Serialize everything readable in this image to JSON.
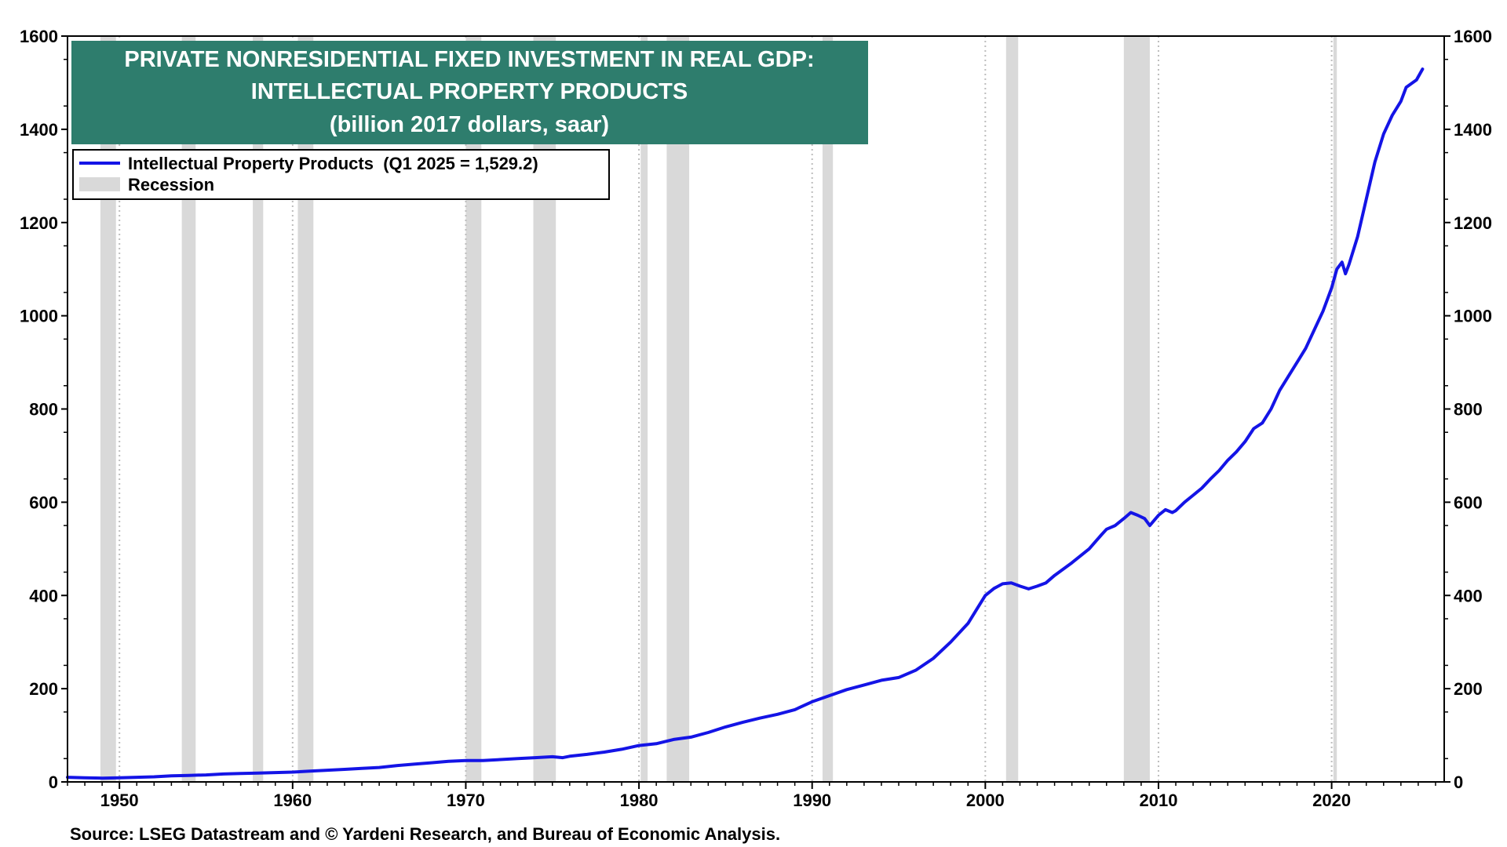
{
  "chart_data": {
    "type": "line",
    "title": [
      "PRIVATE NONRESIDENTIAL FIXED INVESTMENT IN REAL GDP:",
      "INTELLECTUAL PROPERTY PRODUCTS",
      "(billion 2017 dollars, saar)"
    ],
    "source": "Source: LSEG Datastream and © Yardeni Research, and Bureau of Economic Analysis.",
    "xlim": [
      1947,
      2026.5
    ],
    "ylim": [
      0,
      1600
    ],
    "x_ticks": [
      1950,
      1960,
      1970,
      1980,
      1990,
      2000,
      2010,
      2020
    ],
    "y_ticks": [
      0,
      200,
      400,
      600,
      800,
      1000,
      1200,
      1400,
      1600
    ],
    "y_tick_labels": [
      "0",
      "200",
      "400",
      "600",
      "800",
      "1000",
      "1200",
      "1400",
      "1600"
    ],
    "axes": "left and right",
    "grid": "dotted vertical",
    "legend_position": "top-left",
    "colors": {
      "series": "#1414e6",
      "recession": "#d9d9d9",
      "title_bg": "#2e7d6d"
    },
    "legend": [
      {
        "label": "Intellectual Property Products  (Q1 2025 = 1,529.2)",
        "kind": "line"
      },
      {
        "label": "Recession",
        "kind": "band"
      }
    ],
    "recessions": [
      [
        1948.9,
        1949.8
      ],
      [
        1953.6,
        1954.4
      ],
      [
        1957.7,
        1958.3
      ],
      [
        1960.3,
        1961.2
      ],
      [
        1970.0,
        1970.9
      ],
      [
        1973.9,
        1975.2
      ],
      [
        1980.1,
        1980.5
      ],
      [
        1981.6,
        1982.9
      ],
      [
        1990.6,
        1991.2
      ],
      [
        2001.2,
        2001.9
      ],
      [
        2008.0,
        2009.5
      ],
      [
        2020.1,
        2020.3
      ]
    ],
    "series": [
      {
        "name": "Intellectual Property Products",
        "points": [
          [
            1947.0,
            10
          ],
          [
            1948.0,
            9
          ],
          [
            1949.0,
            8
          ],
          [
            1950.0,
            9
          ],
          [
            1951.0,
            10
          ],
          [
            1952.0,
            11
          ],
          [
            1953.0,
            13
          ],
          [
            1954.0,
            14
          ],
          [
            1955.0,
            15
          ],
          [
            1956.0,
            17
          ],
          [
            1957.0,
            18
          ],
          [
            1958.0,
            19
          ],
          [
            1959.0,
            20
          ],
          [
            1960.0,
            21
          ],
          [
            1961.0,
            23
          ],
          [
            1962.0,
            25
          ],
          [
            1963.0,
            27
          ],
          [
            1964.0,
            29
          ],
          [
            1965.0,
            31
          ],
          [
            1966.0,
            35
          ],
          [
            1967.0,
            38
          ],
          [
            1968.0,
            41
          ],
          [
            1969.0,
            44
          ],
          [
            1970.0,
            46
          ],
          [
            1971.0,
            46
          ],
          [
            1972.0,
            48
          ],
          [
            1973.0,
            50
          ],
          [
            1974.0,
            52
          ],
          [
            1975.0,
            54
          ],
          [
            1975.6,
            52
          ],
          [
            1976.0,
            55
          ],
          [
            1977.0,
            59
          ],
          [
            1978.0,
            64
          ],
          [
            1979.0,
            70
          ],
          [
            1980.0,
            78
          ],
          [
            1981.0,
            82
          ],
          [
            1982.0,
            91
          ],
          [
            1983.0,
            96
          ],
          [
            1984.0,
            106
          ],
          [
            1985.0,
            118
          ],
          [
            1986.0,
            128
          ],
          [
            1987.0,
            137
          ],
          [
            1988.0,
            145
          ],
          [
            1989.0,
            155
          ],
          [
            1990.0,
            172
          ],
          [
            1991.0,
            185
          ],
          [
            1992.0,
            198
          ],
          [
            1993.0,
            208
          ],
          [
            1994.0,
            218
          ],
          [
            1995.0,
            224
          ],
          [
            1996.0,
            240
          ],
          [
            1997.0,
            265
          ],
          [
            1998.0,
            300
          ],
          [
            1999.0,
            340
          ],
          [
            1999.5,
            370
          ],
          [
            2000.0,
            400
          ],
          [
            2000.5,
            415
          ],
          [
            2001.0,
            425
          ],
          [
            2001.5,
            427
          ],
          [
            2002.0,
            420
          ],
          [
            2002.5,
            414
          ],
          [
            2003.0,
            420
          ],
          [
            2003.5,
            427
          ],
          [
            2004.0,
            443
          ],
          [
            2005.0,
            470
          ],
          [
            2006.0,
            500
          ],
          [
            2006.7,
            530
          ],
          [
            2007.0,
            542
          ],
          [
            2007.5,
            550
          ],
          [
            2008.0,
            565
          ],
          [
            2008.4,
            578
          ],
          [
            2008.8,
            572
          ],
          [
            2009.2,
            565
          ],
          [
            2009.5,
            550
          ],
          [
            2010.0,
            572
          ],
          [
            2010.4,
            584
          ],
          [
            2010.8,
            578
          ],
          [
            2011.0,
            582
          ],
          [
            2011.5,
            600
          ],
          [
            2012.0,
            615
          ],
          [
            2012.5,
            630
          ],
          [
            2013.0,
            650
          ],
          [
            2013.5,
            668
          ],
          [
            2014.0,
            690
          ],
          [
            2014.5,
            708
          ],
          [
            2015.0,
            730
          ],
          [
            2015.5,
            758
          ],
          [
            2016.0,
            770
          ],
          [
            2016.5,
            800
          ],
          [
            2017.0,
            840
          ],
          [
            2017.5,
            870
          ],
          [
            2018.0,
            900
          ],
          [
            2018.5,
            930
          ],
          [
            2019.0,
            970
          ],
          [
            2019.5,
            1010
          ],
          [
            2020.0,
            1060
          ],
          [
            2020.3,
            1100
          ],
          [
            2020.6,
            1115
          ],
          [
            2020.8,
            1090
          ],
          [
            2021.0,
            1110
          ],
          [
            2021.5,
            1170
          ],
          [
            2022.0,
            1250
          ],
          [
            2022.5,
            1330
          ],
          [
            2023.0,
            1390
          ],
          [
            2023.5,
            1430
          ],
          [
            2024.0,
            1460
          ],
          [
            2024.3,
            1490
          ],
          [
            2024.6,
            1498
          ],
          [
            2024.9,
            1506
          ],
          [
            2025.25,
            1529.2
          ]
        ]
      }
    ]
  }
}
